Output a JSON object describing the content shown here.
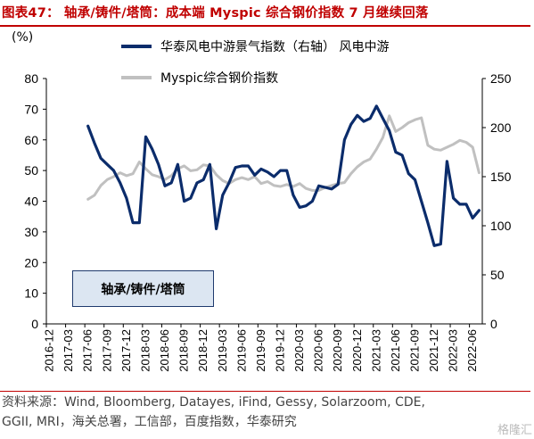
{
  "header": {
    "title": "图表47： 轴承/铸件/塔筒：成本端 Myspic 综合钢价指数 7 月继续回落"
  },
  "source": {
    "line1": "资料来源：Wind, Bloomberg, Datayes, iFind, Gessy, Solarzoom, CDE,",
    "line2": "GGII, MRI，海关总署，工信部，百度指数，华泰研究"
  },
  "annotation_box": "轴承/铸件/塔筒",
  "watermark": "格隆汇",
  "chart_data": {
    "type": "line",
    "y_left_label": "(%)",
    "ylim_left": [
      0,
      80
    ],
    "ylim_right": [
      0,
      250
    ],
    "yticks_left": [
      "0",
      "10",
      "20",
      "30",
      "40",
      "50",
      "60",
      "70",
      "80"
    ],
    "yticks_right": [
      "0",
      "50",
      "100",
      "150",
      "200",
      "250"
    ],
    "x_tick_labels": [
      "2016-12",
      "2017-03",
      "2017-06",
      "2017-09",
      "2017-12",
      "2018-03",
      "2018-06",
      "2018-09",
      "2018-12",
      "2019-03",
      "2019-06",
      "2019-09",
      "2019-12",
      "2020-03",
      "2020-06",
      "2020-09",
      "2020-12",
      "2021-03",
      "2021-06",
      "2021-09",
      "2021-12",
      "2022-03",
      "2022-06"
    ],
    "x_start": "2016-12",
    "series": [
      {
        "name": "华泰风电中游景气指数（右轴） 风电中游",
        "axis": "left",
        "color": "#0b2c6b",
        "start": "2017-06",
        "values": [
          64.5,
          59,
          54,
          52,
          50,
          46,
          41,
          33,
          33,
          61,
          57,
          52,
          45,
          46,
          52,
          40,
          41,
          46,
          47,
          52,
          31,
          42,
          46,
          51,
          51.5,
          51.5,
          48.5,
          50.5,
          49.5,
          48,
          50,
          50,
          42,
          38,
          38.5,
          40,
          45,
          44.5,
          44,
          45.5,
          60,
          65,
          68,
          66,
          67,
          71,
          67,
          63,
          56,
          55,
          49,
          47,
          40,
          33,
          25.5,
          26,
          53,
          41,
          39,
          39,
          34.5,
          37
        ]
      },
      {
        "name": "Myspic综合钢价指数",
        "axis": "right",
        "color": "#c0c0c0",
        "start": "2017-06",
        "values": [
          127,
          131,
          141,
          147,
          150,
          154,
          151,
          153,
          165,
          158,
          152,
          150,
          147,
          151,
          158,
          161,
          156,
          157,
          162,
          161,
          152,
          146,
          143,
          147,
          149,
          147,
          150,
          143,
          145,
          141,
          140,
          142,
          140,
          143,
          138,
          136,
          136,
          139,
          141,
          143,
          144,
          153,
          160,
          165,
          168,
          178,
          190,
          212,
          196,
          200,
          205,
          208,
          210,
          182,
          178,
          177,
          180,
          183,
          187,
          185,
          180,
          154
        ]
      }
    ]
  }
}
